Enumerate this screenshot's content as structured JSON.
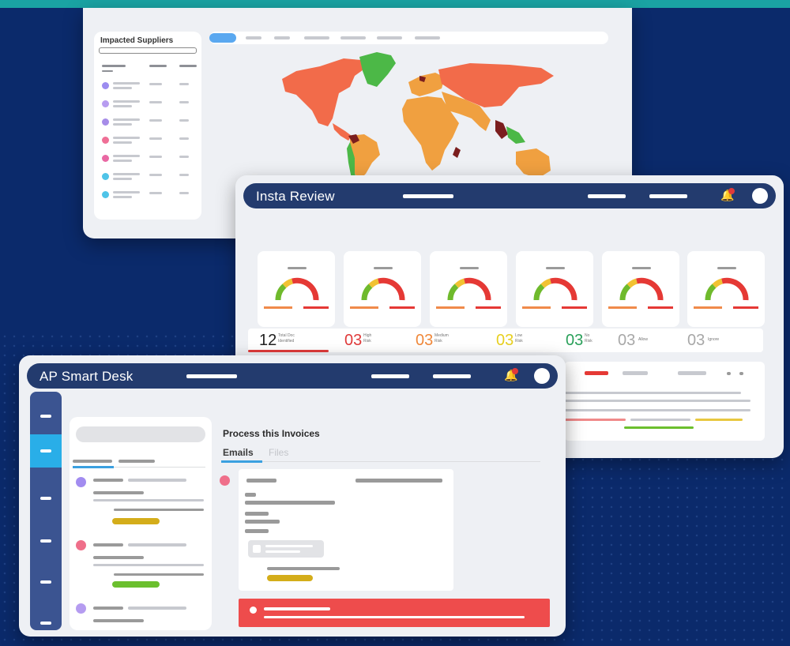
{
  "background": {
    "color": "#0b2a6b",
    "accent_strip": "#1aa3a3"
  },
  "suppliers_window": {
    "panel_title": "Impacted Suppliers",
    "supplier_dot_colors": [
      "#9c8cf0",
      "#b79cf0",
      "#a68ce8",
      "#ef6f96",
      "#e968a3",
      "#4fc4e8",
      "#4fc4e8"
    ],
    "map_region_colors": {
      "americas": "#f26b4a",
      "greenland": "#4cb847",
      "south_america": "#f0a040",
      "africa_asia": "#f0a040",
      "russia": "#f26b4a",
      "hotspot": "#7b1e1e"
    }
  },
  "insta_review": {
    "title": "Insta Review",
    "icons": {
      "bell": "bell-icon",
      "avatar": "avatar-icon"
    },
    "gauge_count": 6,
    "stats": [
      {
        "value": "12",
        "label_line1": "Total Doc",
        "label_line2": "Identified",
        "color": "#222222"
      },
      {
        "value": "03",
        "label_line1": "High",
        "label_line2": "Risk",
        "color": "#e03a3a"
      },
      {
        "value": "03",
        "label_line1": "Medium",
        "label_line2": "Risk",
        "color": "#f0883a"
      },
      {
        "value": "03",
        "label_line1": "Low",
        "label_line2": "Risk",
        "color": "#e8d020"
      },
      {
        "value": "03",
        "label_line1": "No",
        "label_line2": "Risk",
        "color": "#2aa05a"
      },
      {
        "value": "03",
        "label_line1": "Allow",
        "label_line2": "",
        "color": "#a8a8a8"
      },
      {
        "value": "03",
        "label_line1": "Ignore",
        "label_line2": "",
        "color": "#a8a8a8"
      }
    ]
  },
  "smart_desk": {
    "title": "AP Smart Desk",
    "heading": "Process this Invoices",
    "tabs": [
      "Emails",
      "Files"
    ],
    "icons": {
      "bell": "bell-icon",
      "avatar": "avatar-icon"
    },
    "mail_dot_colors": [
      "#a28cf0",
      "#ef6f8a",
      "#b59cf0"
    ],
    "tag_colors": [
      "#d4ad1a",
      "#6bbf2e"
    ],
    "alert_color": "#ee4c4c"
  }
}
